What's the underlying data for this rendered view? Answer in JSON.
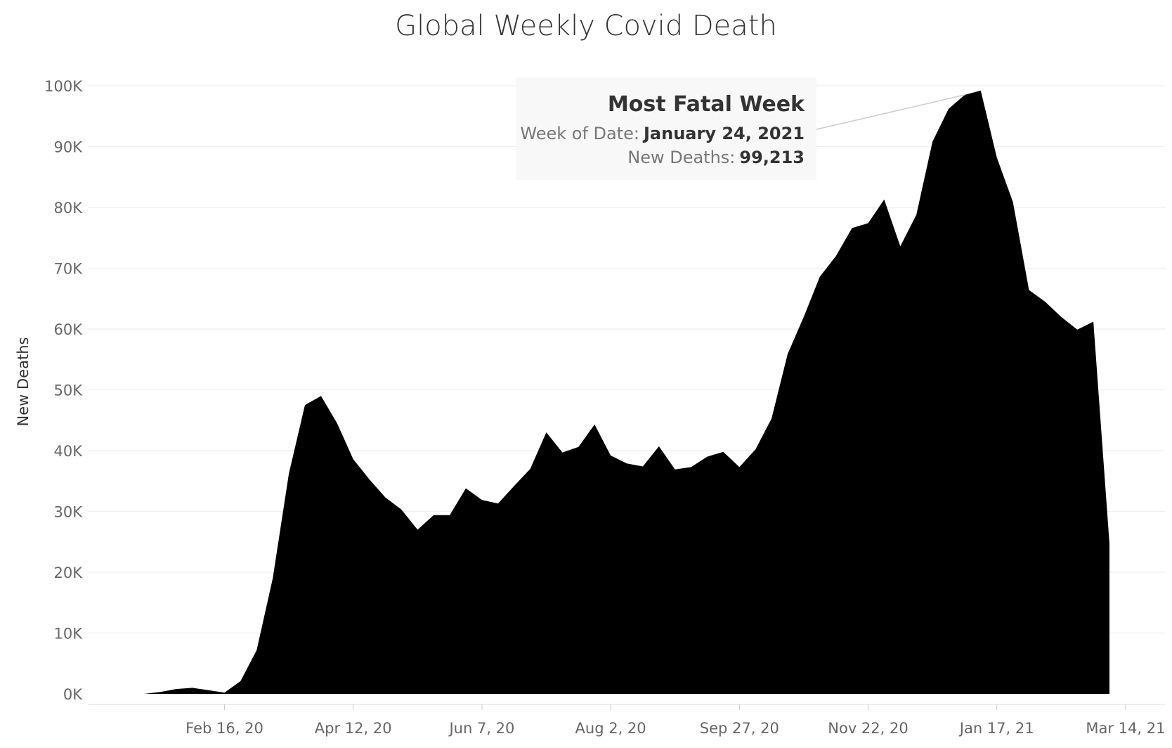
{
  "chart_data": {
    "type": "area",
    "title": "Global Weekly Covid Death",
    "ylabel": "New Deaths",
    "xlabel": "",
    "ylim": [
      0,
      100000
    ],
    "y_ticks": [
      0,
      10000,
      20000,
      30000,
      40000,
      50000,
      60000,
      70000,
      80000,
      90000,
      100000
    ],
    "y_tick_labels": [
      "0K",
      "10K",
      "20K",
      "30K",
      "40K",
      "50K",
      "60K",
      "70K",
      "80K",
      "90K",
      "100K"
    ],
    "x_tick_labels": [
      "Feb 16, 20",
      "Apr 12, 20",
      "Jun 7, 20",
      "Aug 2, 20",
      "Sep 27, 20",
      "Nov 22, 20",
      "Jan 17, 21",
      "Mar 14, 21"
    ],
    "x_tick_index": [
      5,
      13,
      21,
      29,
      37,
      45,
      53,
      61
    ],
    "grid": true,
    "color": "#000000",
    "series": [
      {
        "values": [
          0,
          300,
          800,
          1000,
          600,
          200,
          2100,
          7200,
          19000,
          36200,
          47500,
          49000,
          44500,
          38600,
          35300,
          32300,
          30300,
          27000,
          29400,
          29400,
          33800,
          31900,
          31300,
          34200,
          37000,
          43000,
          39700,
          40600,
          44300,
          39200,
          37900,
          37400,
          40700,
          36900,
          37300,
          39000,
          39800,
          37300,
          40200,
          45300,
          55900,
          62000,
          68600,
          72000,
          76600,
          77400,
          81300,
          73600,
          78800,
          90800,
          96200,
          98500,
          99213,
          88200,
          80900,
          66400,
          64500,
          62000,
          59900,
          61200,
          24700
        ]
      }
    ],
    "annotation": {
      "title": "Most Fatal Week",
      "date_label": "Week of Date:",
      "date_value": "January 24, 2021",
      "deaths_label": "New Deaths:",
      "deaths_value": "99,213",
      "point_index": 52
    }
  }
}
